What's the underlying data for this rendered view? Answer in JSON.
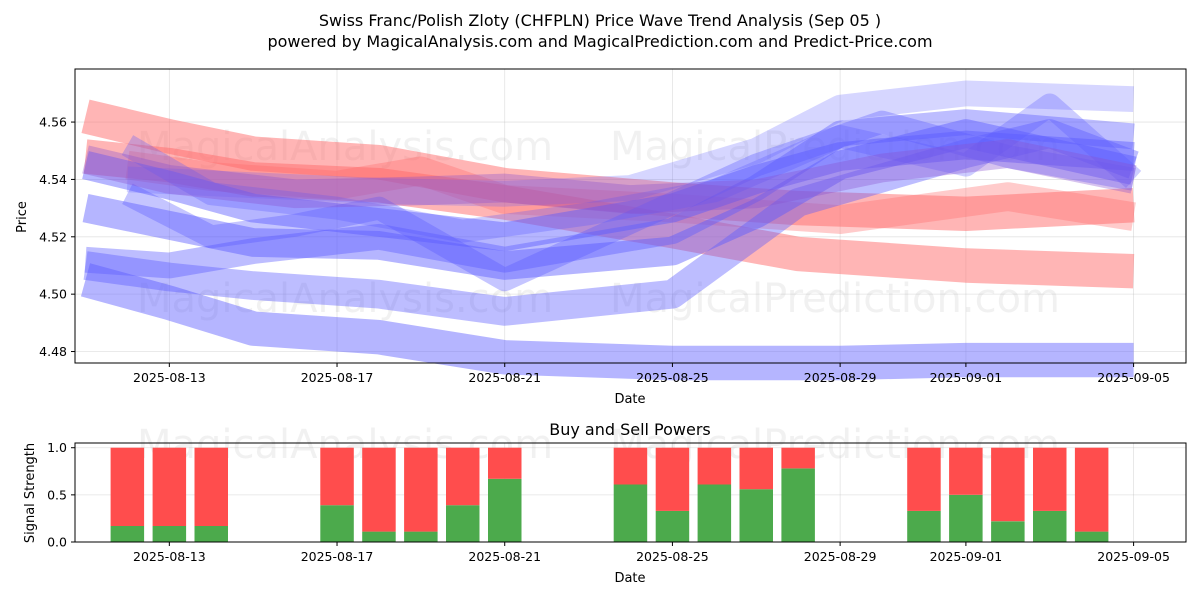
{
  "header": {
    "title_line1": "Swiss Franc/Polish Zloty (CHFPLN) Price Wave Trend Analysis (Sep 05 )",
    "title_line2": "powered by MagicalAnalysis.com and MagicalPrediction.com and Predict-Price.com"
  },
  "watermarks": {
    "left": "MagicalAnalysis.com",
    "right": "MagicalPrediction.com"
  },
  "colors": {
    "red_band": "#ff6b6b",
    "blue_band": "#5a5aff",
    "buy": "#4caa4c",
    "sell": "#ff4d4d"
  },
  "chart_data": [
    {
      "type": "line",
      "title": "",
      "xlabel": "Date",
      "ylabel": "Price",
      "x_range": [
        "2025-08-10 18:00",
        "2025-09-06 06:00"
      ],
      "ylim": [
        4.476,
        4.5785
      ],
      "x_tick_labels": [
        "2025-08-13",
        "2025-08-17",
        "2025-08-21",
        "2025-08-25",
        "2025-08-29",
        "2025-09-01",
        "2025-09-05"
      ],
      "y_ticks": [
        4.48,
        4.5,
        4.52,
        4.54,
        4.56
      ],
      "y_tick_labels": [
        "4.48",
        "4.50",
        "4.52",
        "4.54",
        "4.56"
      ],
      "grid": true,
      "series": [
        {
          "name": "red-wave-upper",
          "color": "red",
          "width": 0.012,
          "opacity": 0.5,
          "x": [
            "2025-08-11",
            "2025-08-13",
            "2025-08-15",
            "2025-08-18",
            "2025-08-21",
            "2025-08-25",
            "2025-08-28",
            "2025-09-01",
            "2025-09-05"
          ],
          "values": [
            4.562,
            4.555,
            4.549,
            4.546,
            4.538,
            4.533,
            4.53,
            4.528,
            4.531
          ]
        },
        {
          "name": "red-wave-lower",
          "color": "red",
          "width": 0.012,
          "opacity": 0.5,
          "x": [
            "2025-08-11",
            "2025-08-13",
            "2025-08-15",
            "2025-08-18",
            "2025-08-21",
            "2025-08-25",
            "2025-08-28",
            "2025-09-01",
            "2025-09-05"
          ],
          "values": [
            4.548,
            4.545,
            4.54,
            4.538,
            4.532,
            4.522,
            4.514,
            4.51,
            4.508
          ]
        },
        {
          "name": "red-wave-mid",
          "color": "red",
          "width": 0.01,
          "opacity": 0.35,
          "x": [
            "2025-08-12",
            "2025-08-14",
            "2025-08-17",
            "2025-08-19",
            "2025-08-21",
            "2025-08-25",
            "2025-08-29",
            "2025-09-02",
            "2025-09-05"
          ],
          "values": [
            4.545,
            4.541,
            4.538,
            4.543,
            4.533,
            4.53,
            4.526,
            4.534,
            4.527
          ]
        },
        {
          "name": "blue-wave-1",
          "color": "blue",
          "width": 0.01,
          "opacity": 0.45,
          "x": [
            "2025-08-11",
            "2025-08-13",
            "2025-08-15",
            "2025-08-18",
            "2025-08-21",
            "2025-08-25",
            "2025-08-27",
            "2025-08-29",
            "2025-09-01",
            "2025-09-05"
          ],
          "values": [
            4.545,
            4.538,
            4.53,
            4.525,
            4.52,
            4.53,
            4.54,
            4.548,
            4.552,
            4.548
          ]
        },
        {
          "name": "blue-wave-2",
          "color": "blue",
          "width": 0.01,
          "opacity": 0.45,
          "x": [
            "2025-08-11",
            "2025-08-13",
            "2025-08-15",
            "2025-08-18",
            "2025-08-21",
            "2025-08-25",
            "2025-08-27",
            "2025-08-29",
            "2025-09-01",
            "2025-09-05"
          ],
          "values": [
            4.53,
            4.524,
            4.518,
            4.517,
            4.51,
            4.515,
            4.528,
            4.545,
            4.556,
            4.543
          ]
        },
        {
          "name": "blue-wave-3",
          "color": "blue",
          "width": 0.009,
          "opacity": 0.4,
          "x": [
            "2025-08-11",
            "2025-08-13",
            "2025-08-15",
            "2025-08-18",
            "2025-08-21",
            "2025-08-25",
            "2025-08-27",
            "2025-08-29",
            "2025-09-01",
            "2025-09-05"
          ],
          "values": [
            4.512,
            4.51,
            4.515,
            4.52,
            4.512,
            4.522,
            4.537,
            4.556,
            4.56,
            4.555
          ]
        },
        {
          "name": "blue-wave-4",
          "color": "blue",
          "width": 0.012,
          "opacity": 0.45,
          "x": [
            "2025-08-11",
            "2025-08-13",
            "2025-08-15",
            "2025-08-18",
            "2025-08-21",
            "2025-08-25",
            "2025-08-29",
            "2025-09-01",
            "2025-09-05"
          ],
          "values": [
            4.505,
            4.497,
            4.488,
            4.485,
            4.478,
            4.476,
            4.476,
            4.477,
            4.477
          ]
        },
        {
          "name": "blue-wave-5",
          "color": "blue",
          "width": 0.01,
          "opacity": 0.4,
          "x": [
            "2025-08-11",
            "2025-08-13",
            "2025-08-15",
            "2025-08-18",
            "2025-08-21",
            "2025-08-25",
            "2025-08-28",
            "2025-09-01",
            "2025-09-03",
            "2025-09-05"
          ],
          "values": [
            4.51,
            4.506,
            4.503,
            4.5,
            4.494,
            4.5,
            4.532,
            4.549,
            4.556,
            4.545
          ]
        },
        {
          "name": "blue-wave-6",
          "color": "blue",
          "width": 0.008,
          "opacity": 0.35,
          "x": [
            "2025-08-12",
            "2025-08-14",
            "2025-08-16",
            "2025-08-18",
            "2025-08-21",
            "2025-08-24",
            "2025-08-27",
            "2025-08-30",
            "2025-09-02",
            "2025-09-05"
          ],
          "values": [
            4.535,
            4.52,
            4.524,
            4.53,
            4.505,
            4.525,
            4.545,
            4.56,
            4.548,
            4.54
          ]
        },
        {
          "name": "blue-wave-7",
          "color": "blue",
          "width": 0.008,
          "opacity": 0.3,
          "x": [
            "2025-08-12",
            "2025-08-14",
            "2025-08-17",
            "2025-08-20",
            "2025-08-23",
            "2025-08-26",
            "2025-08-29",
            "2025-09-01",
            "2025-09-03",
            "2025-09-05"
          ],
          "values": [
            4.552,
            4.535,
            4.53,
            4.522,
            4.528,
            4.536,
            4.555,
            4.545,
            4.566,
            4.54
          ]
        },
        {
          "name": "blue-wave-8",
          "color": "blue",
          "width": 0.009,
          "opacity": 0.25,
          "x": [
            "2025-08-12",
            "2025-08-15",
            "2025-08-18",
            "2025-08-21",
            "2025-08-24",
            "2025-08-27",
            "2025-08-29",
            "2025-09-01",
            "2025-09-05"
          ],
          "values": [
            4.54,
            4.538,
            4.536,
            4.535,
            4.537,
            4.55,
            4.565,
            4.57,
            4.568
          ]
        },
        {
          "name": "purple-overlap",
          "color": "purple",
          "width": 0.01,
          "opacity": 0.35,
          "x": [
            "2025-08-11",
            "2025-08-13",
            "2025-08-16",
            "2025-08-19",
            "2025-08-21",
            "2025-08-24",
            "2025-08-27",
            "2025-08-30",
            "2025-09-02",
            "2025-09-05"
          ],
          "values": [
            4.547,
            4.54,
            4.535,
            4.536,
            4.537,
            4.533,
            4.535,
            4.544,
            4.549,
            4.54
          ]
        }
      ]
    },
    {
      "type": "bar",
      "title": "Buy and Sell Powers",
      "xlabel": "Date",
      "ylabel": "Signal Strength",
      "ylim": [
        0,
        1.05
      ],
      "y_ticks": [
        0.0,
        0.5,
        1.0
      ],
      "y_tick_labels": [
        "0.0",
        "0.5",
        "1.0"
      ],
      "x_tick_labels": [
        "2025-08-13",
        "2025-08-17",
        "2025-08-21",
        "2025-08-25",
        "2025-08-29",
        "2025-09-01",
        "2025-09-05"
      ],
      "grid": true,
      "categories": [
        "2025-08-12",
        "2025-08-13",
        "2025-08-14",
        "2025-08-17",
        "2025-08-18",
        "2025-08-19",
        "2025-08-20",
        "2025-08-21",
        "2025-08-24",
        "2025-08-25",
        "2025-08-26",
        "2025-08-27",
        "2025-08-28",
        "2025-08-31",
        "2025-09-01",
        "2025-09-02",
        "2025-09-03",
        "2025-09-04"
      ],
      "series": [
        {
          "name": "Buy",
          "values": [
            0.17,
            0.17,
            0.17,
            0.39,
            0.11,
            0.11,
            0.39,
            0.67,
            0.61,
            0.33,
            0.61,
            0.56,
            0.78,
            0.33,
            0.5,
            0.22,
            0.33,
            0.11
          ]
        },
        {
          "name": "Sell",
          "values": [
            0.83,
            0.83,
            0.83,
            0.61,
            0.89,
            0.89,
            0.61,
            0.33,
            0.39,
            0.67,
            0.39,
            0.44,
            0.22,
            0.67,
            0.5,
            0.78,
            0.67,
            0.89
          ]
        }
      ]
    }
  ]
}
